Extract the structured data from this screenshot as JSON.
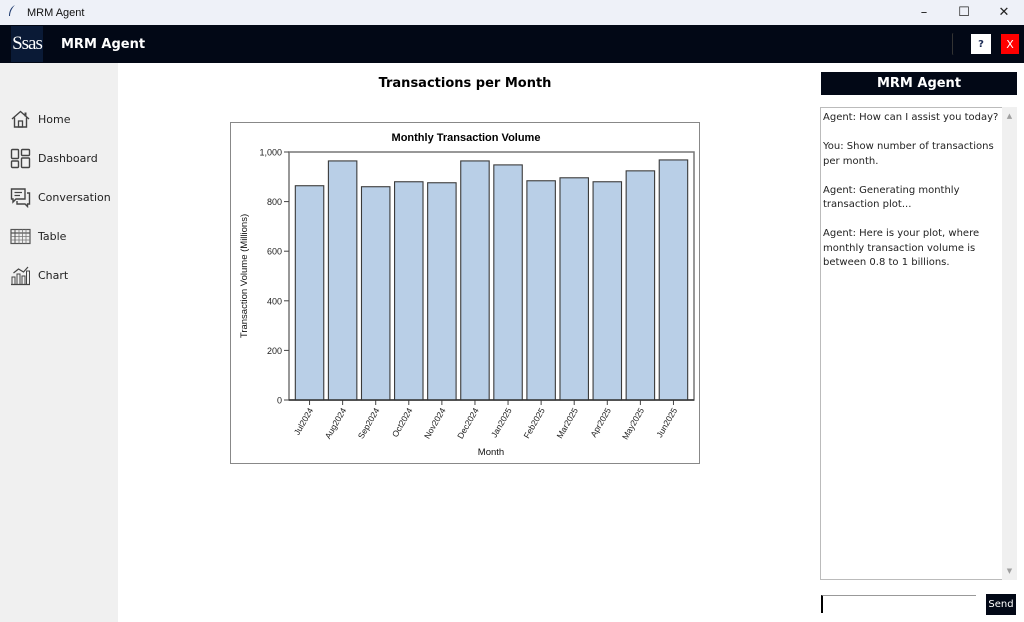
{
  "window": {
    "title": "MRM Agent",
    "controls": {
      "minimize": "–",
      "maximize": "☐",
      "close": "✕"
    }
  },
  "appbar": {
    "logo_text": "Ssas",
    "title": "MRM Agent",
    "help_label": "?",
    "close_label": "X"
  },
  "sidebar": {
    "items": [
      {
        "label": "Home",
        "icon": "home-icon"
      },
      {
        "label": "Dashboard",
        "icon": "dashboard-icon"
      },
      {
        "label": "Conversation",
        "icon": "conversation-icon"
      },
      {
        "label": "Table",
        "icon": "table-icon"
      },
      {
        "label": "Chart",
        "icon": "chart-icon"
      }
    ]
  },
  "main": {
    "title": "Transactions per Month"
  },
  "chart_data": {
    "type": "bar",
    "title": "Monthly Transaction Volume",
    "xlabel": "Month",
    "ylabel": "Transaction Volume (Millions)",
    "categories": [
      "Jul2024",
      "Aug2024",
      "Sep2024",
      "Oct2024",
      "Nov2024",
      "Dec2024",
      "Jan2025",
      "Feb2025",
      "Mar2025",
      "Apr2025",
      "May2025",
      "Jun2025"
    ],
    "values": [
      864,
      964,
      860,
      880,
      876,
      964,
      948,
      884,
      896,
      880,
      924,
      968
    ],
    "ylim": [
      0,
      1000
    ],
    "yticks": [
      0,
      200,
      400,
      600,
      800,
      1000
    ],
    "ytick_labels": [
      "0",
      "200",
      "400",
      "600",
      "800",
      "1,000"
    ],
    "bar_color": "#b9cfe7",
    "bar_edge_color": "#3a3a3a",
    "grid": false,
    "legend": null
  },
  "chat": {
    "header": "MRM Agent",
    "messages": [
      {
        "sender": "Agent",
        "text": "Agent: How can I assist you today?"
      },
      {
        "sender": "You",
        "text": "You: Show number of transactions per month."
      },
      {
        "sender": "Agent",
        "text": "Agent: Generating monthly transaction plot..."
      },
      {
        "sender": "Agent",
        "text": "Agent: Here is your plot, where monthly transaction volume is between 0.8 to 1 billions."
      }
    ],
    "input_value": "",
    "send_label": "Send"
  },
  "colors": {
    "appbar_bg": "#020816",
    "close_button": "#ff0000",
    "sidebar_bg": "#f0f0f0"
  }
}
